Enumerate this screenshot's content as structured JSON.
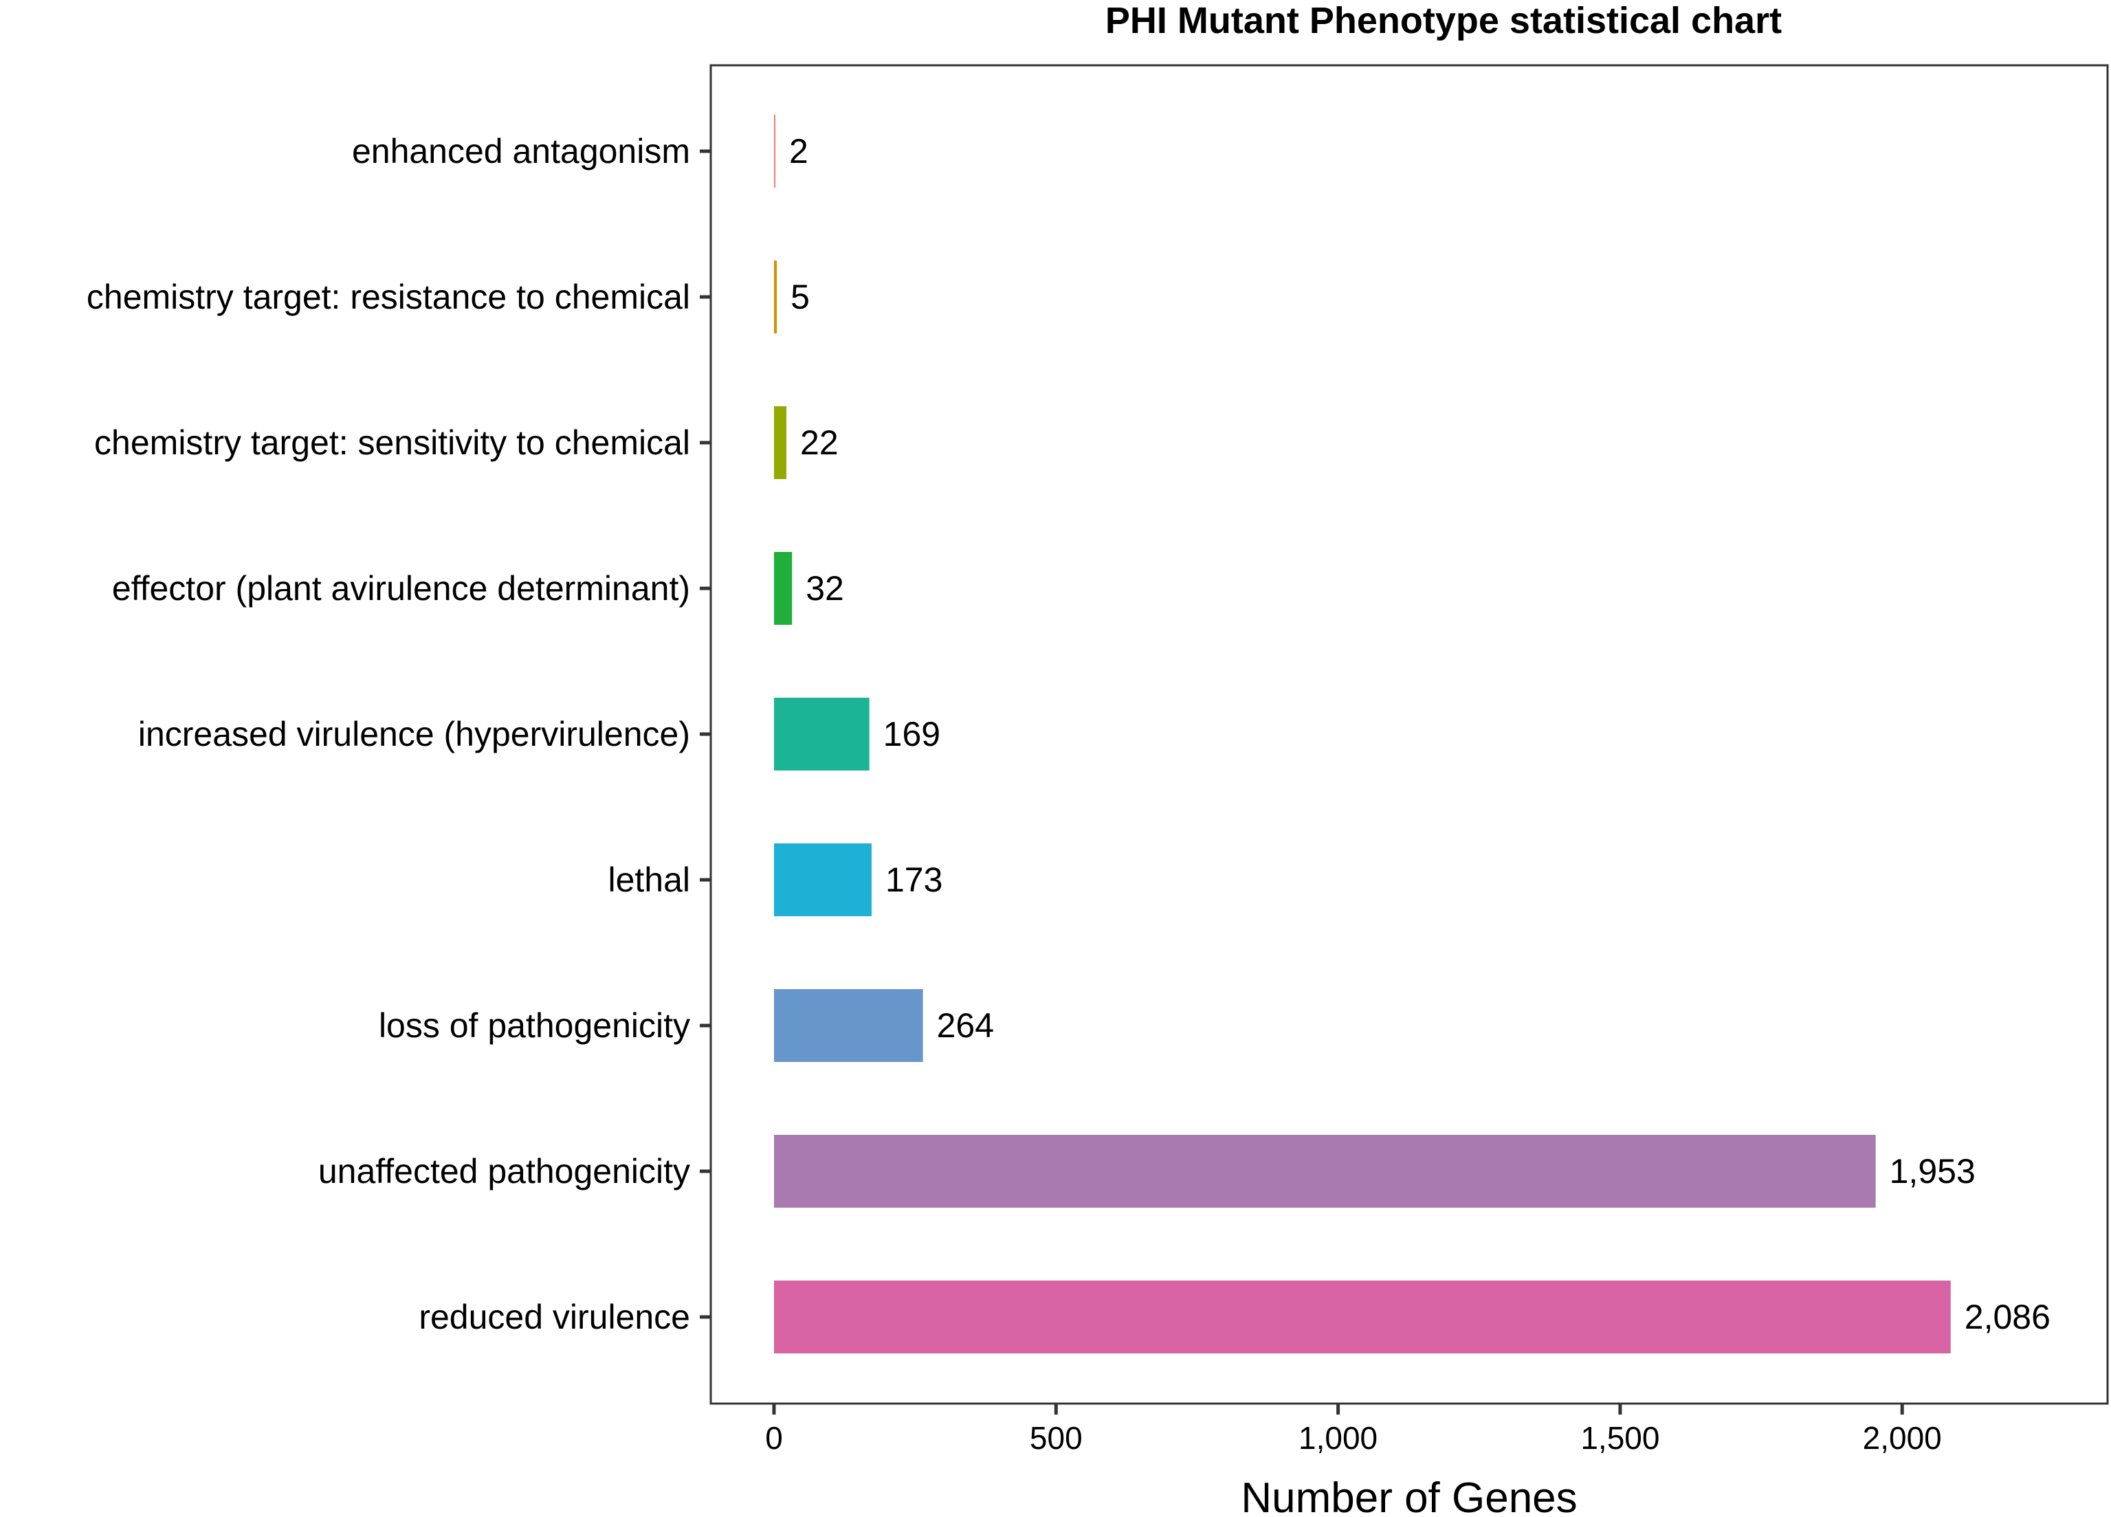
{
  "chart_data": {
    "type": "bar",
    "orientation": "horizontal",
    "title": "PHI Mutant Phenotype statistical chart",
    "xlabel": "Number of Genes",
    "ylabel": "",
    "xlim": [
      0,
      2300
    ],
    "xticks": [
      0,
      500,
      1000,
      1500,
      2000
    ],
    "xtick_labels": [
      "0",
      "500",
      "1,000",
      "1,500",
      "2,000"
    ],
    "grid": false,
    "legend": "none",
    "categories": [
      "enhanced antagonism",
      "chemistry target: resistance to chemical",
      "chemistry target: sensitivity to chemical",
      "effector (plant avirulence determinant)",
      "increased virulence (hypervirulence)",
      "lethal",
      "loss of pathogenicity",
      "unaffected pathogenicity",
      "reduced virulence"
    ],
    "values": [
      2,
      5,
      22,
      32,
      169,
      173,
      264,
      1953,
      2086
    ],
    "value_labels": [
      "2",
      "5",
      "22",
      "32",
      "169",
      "173",
      "264",
      "1,953",
      "2,086"
    ],
    "colors": [
      "#F8766D",
      "#D39200",
      "#93AA00",
      "#22AE3A",
      "#1CB496",
      "#1FB0D6",
      "#6796CB",
      "#A97AB0",
      "#D863A3"
    ]
  }
}
